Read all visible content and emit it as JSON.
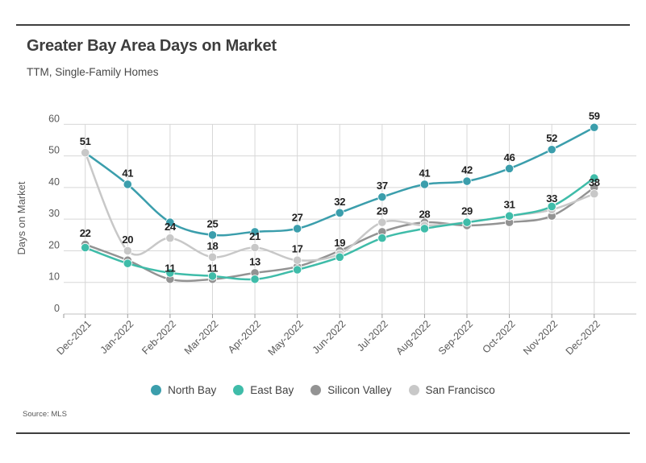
{
  "header": {
    "title": "Greater Bay Area Days on Market",
    "subtitle": "TTM, Single-Family Homes"
  },
  "source": "Source: MLS",
  "chart_data": {
    "type": "line",
    "title": "Greater Bay Area Days on Market",
    "subtitle": "TTM, Single-Family Homes",
    "xlabel": "",
    "ylabel": "Days on Market",
    "ylim": [
      0,
      60
    ],
    "yticks": [
      0,
      10,
      20,
      30,
      40,
      50,
      60
    ],
    "grid": true,
    "legend_position": "bottom-center",
    "categories": [
      "Dec-2021",
      "Jan-2022",
      "Feb-2022",
      "Mar-2022",
      "Apr-2022",
      "May-2022",
      "Jun-2022",
      "Jul-2022",
      "Aug-2022",
      "Sep-2022",
      "Oct-2022",
      "Nov-2022",
      "Dec-2022"
    ],
    "series": [
      {
        "name": "North Bay",
        "color": "#3b9eac",
        "values": [
          51,
          41,
          29,
          25,
          26,
          27,
          32,
          37,
          41,
          42,
          46,
          52,
          59
        ],
        "labeled_points": [
          0,
          1,
          3,
          5,
          6,
          7,
          8,
          9,
          10,
          11,
          12
        ]
      },
      {
        "name": "East Bay",
        "color": "#3fbca9",
        "values": [
          21,
          16,
          13,
          12,
          11,
          14,
          18,
          24,
          27,
          29,
          31,
          34,
          43
        ],
        "labeled_points": []
      },
      {
        "name": "Silicon Valley",
        "color": "#939393",
        "values": [
          22,
          17,
          11,
          11,
          13,
          15,
          20,
          26,
          29,
          28,
          29,
          31,
          40
        ],
        "labeled_points": [
          0,
          2,
          3,
          4
        ]
      },
      {
        "name": "San Francisco",
        "color": "#c8c8c8",
        "values": [
          51,
          20,
          24,
          18,
          21,
          17,
          19,
          29,
          28,
          29,
          31,
          33,
          38
        ],
        "labeled_points": [
          1,
          2,
          3,
          4,
          5,
          6,
          7,
          8,
          9,
          10,
          11,
          12
        ]
      }
    ]
  }
}
